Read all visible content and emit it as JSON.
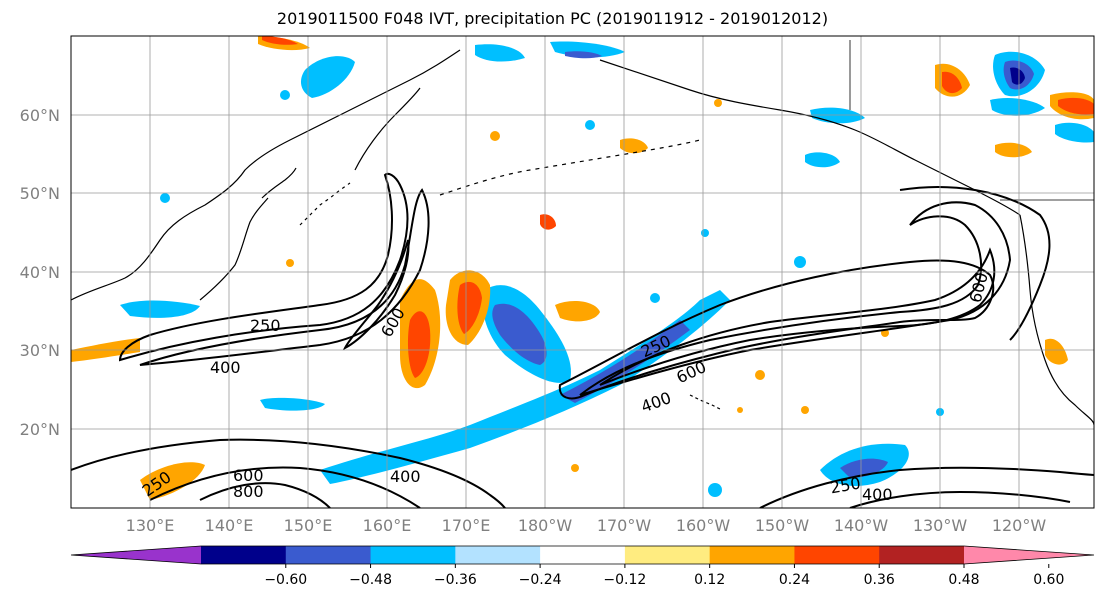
{
  "title": "2019011500 F048 IVT, precipitation PC (2019011912 - 2019012012)",
  "map": {
    "lat_labels": [
      "60°N",
      "50°N",
      "40°N",
      "30°N",
      "20°N"
    ],
    "lon_labels": [
      "130°E",
      "140°E",
      "150°E",
      "160°E",
      "170°E",
      "180°W",
      "170°W",
      "160°W",
      "150°W",
      "140°W",
      "130°W",
      "120°W"
    ],
    "contour_labels": {
      "west_250": "250",
      "west_400": "400",
      "west_600": "600",
      "central_250": "250",
      "central_600": "600",
      "central_400": "400",
      "east_600": "600",
      "south_250": "250",
      "south_600": "600",
      "south_800": "800",
      "south_400": "400",
      "se_250": "250",
      "se_400": "400"
    }
  },
  "colorbar": {
    "ticks": [
      "−0.60",
      "−0.48",
      "−0.36",
      "−0.24",
      "−0.12",
      "0.12",
      "0.24",
      "0.36",
      "0.48",
      "0.60"
    ],
    "colors": [
      "#9933cc",
      "#00008b",
      "#3a5bcf",
      "#00bfff",
      "#b3e2ff",
      "#ffffff",
      "#ffec80",
      "#ffa500",
      "#ff4500",
      "#b22222",
      "#ff88aa"
    ]
  }
}
